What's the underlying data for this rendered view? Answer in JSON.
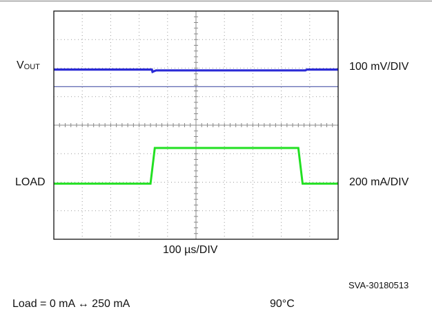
{
  "chart_data": {
    "type": "line",
    "title": "",
    "xlabel": "100 µs/DIV",
    "ylabel": "",
    "x_divisions": 10,
    "y_divisions": 8,
    "x_unit": "µs",
    "grid": true,
    "series": [
      {
        "name": "VOUT",
        "label_main": "V",
        "label_sub": "OUT",
        "scale": "100 mV/DIV",
        "color": "#2b2bd6",
        "x": [
          0,
          3.45,
          3.47,
          3.52,
          3.6,
          8.85,
          8.9,
          10
        ],
        "y": [
          0,
          0,
          -0.08,
          -0.06,
          -0.03,
          -0.03,
          0,
          0
        ]
      },
      {
        "name": "LOAD",
        "scale": "200 mA/DIV",
        "color": "#22e022",
        "x": [
          0,
          3.4,
          3.55,
          8.6,
          8.75,
          10
        ],
        "y": [
          0,
          0,
          250,
          250,
          0,
          0
        ]
      }
    ],
    "reference_line": {
      "series": "VOUT",
      "offset_div": -0.6,
      "color": "#4a55a8"
    }
  },
  "figure_id": "SVA-30180513",
  "conditions": {
    "load": "Load = 0 mA ↔ 250 mA",
    "temperature": "90°C"
  },
  "colors": {
    "grid": "#9a9a9a",
    "frame": "#111111"
  }
}
